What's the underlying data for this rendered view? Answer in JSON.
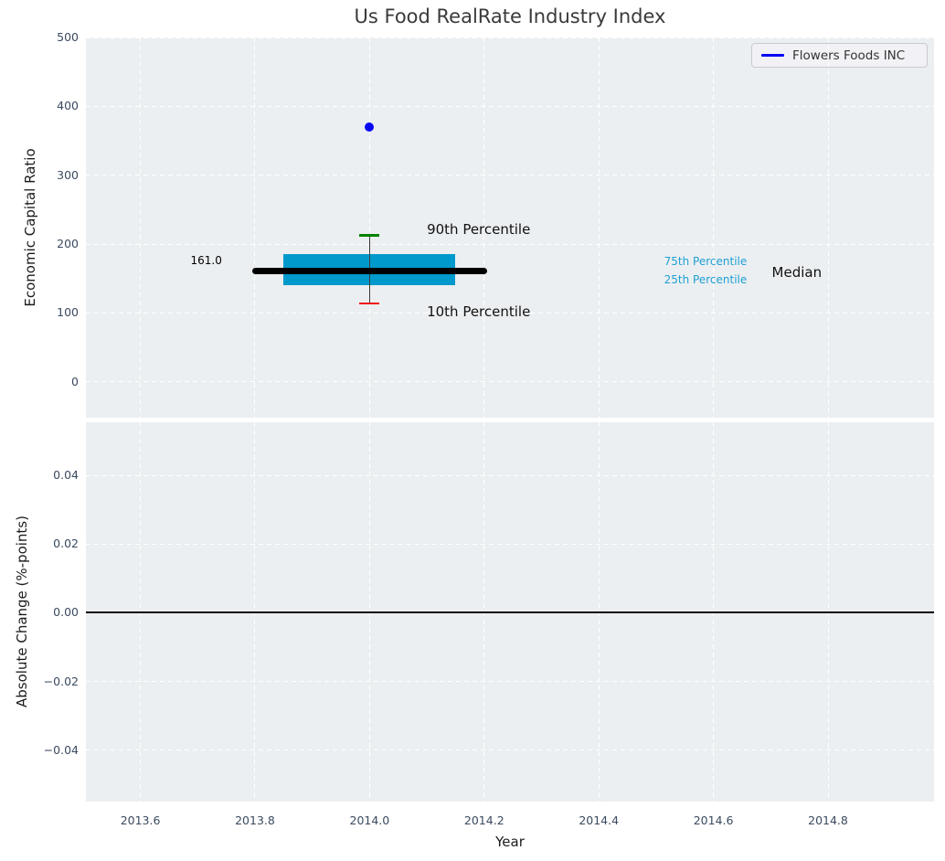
{
  "title": "Us Food RealRate Industry Index",
  "legend": {
    "label": "Flowers Foods INC",
    "position": "upper right"
  },
  "colors": {
    "panel_bg": "#eceff1",
    "grid": "#ffffff",
    "tick_text": "#3b4a5f",
    "title_text": "#3a3a3a",
    "axis_label_text": "#1c1c1c",
    "box_fill": "#0099cc",
    "median": "#000000",
    "whisker": "#3a3a3a",
    "p90_cap": "#008000",
    "p10_cap": "#ee1111",
    "company": "#0707f5",
    "percentile_text": "#1ea0d4",
    "annotation_text": "#111111",
    "zero_line": "#000000",
    "legend_bg": "#f2f2f6",
    "legend_border": "#c9c9d2"
  },
  "chart_data": [
    {
      "type": "boxplot",
      "panel": "top",
      "title": "Us Food RealRate Industry Index",
      "ylabel": "Economic Capital Ratio",
      "ylim": [
        -52,
        500
      ],
      "yticks": [
        {
          "value": 0,
          "label": "0"
        },
        {
          "value": 100,
          "label": "100"
        },
        {
          "value": 200,
          "label": "200"
        },
        {
          "value": 300,
          "label": "300"
        },
        {
          "value": 400,
          "label": "400"
        },
        {
          "value": 500,
          "label": "500"
        }
      ],
      "xlim": [
        2013.505,
        2014.985
      ],
      "xticks": [
        {
          "value": 2013.6,
          "label": "2013.6"
        },
        {
          "value": 2013.8,
          "label": "2013.8"
        },
        {
          "value": 2014.0,
          "label": "2014.0"
        },
        {
          "value": 2014.2,
          "label": "2014.2"
        },
        {
          "value": 2014.4,
          "label": "2014.4"
        },
        {
          "value": 2014.6,
          "label": "2014.6"
        },
        {
          "value": 2014.8,
          "label": "2014.8"
        }
      ],
      "grid": "dashed-white",
      "box": {
        "x_center": 2014.0,
        "box_x_start": 2013.85,
        "box_x_end": 2014.15,
        "median_x_start": 2013.8,
        "median_x_end": 2014.2,
        "p90": 213,
        "p75": 186,
        "median": 161.0,
        "p25": 141,
        "p10": 114
      },
      "company_point": {
        "name": "Flowers Foods INC",
        "x": 2014.0,
        "y": 370
      },
      "annotations": [
        {
          "text": "161.0",
          "x": 2013.715,
          "y": 176,
          "size": 12,
          "color": "#000000",
          "align": "center"
        },
        {
          "text": "90th Percentile",
          "x": 2014.1,
          "y": 221,
          "size": 15,
          "color": "#111111",
          "align": "left"
        },
        {
          "text": "10th Percentile",
          "x": 2014.1,
          "y": 102,
          "size": 15,
          "color": "#111111",
          "align": "left"
        },
        {
          "text": "75th Percentile",
          "x": 2014.514,
          "y": 175,
          "size": 12,
          "color": "#1ea0d4",
          "align": "left"
        },
        {
          "text": "25th Percentile",
          "x": 2014.514,
          "y": 148,
          "size": 12,
          "color": "#1ea0d4",
          "align": "left"
        },
        {
          "text": "Median",
          "x": 2014.702,
          "y": 159,
          "size": 15,
          "color": "#111111",
          "align": "left"
        }
      ]
    },
    {
      "type": "line",
      "panel": "bottom",
      "ylabel": "Absolute Change (%-points)",
      "xlabel": "Year",
      "ylim": [
        -0.055,
        0.0555
      ],
      "yticks": [
        {
          "value": 0.04,
          "label": "0.04"
        },
        {
          "value": 0.02,
          "label": "0.02"
        },
        {
          "value": 0.0,
          "label": "0.00"
        },
        {
          "value": -0.02,
          "label": "−0.02"
        },
        {
          "value": -0.04,
          "label": "−0.04"
        }
      ],
      "xlim": [
        2013.505,
        2014.985
      ],
      "xticks": [
        {
          "value": 2013.6,
          "label": "2013.6"
        },
        {
          "value": 2013.8,
          "label": "2013.8"
        },
        {
          "value": 2014.0,
          "label": "2014.0"
        },
        {
          "value": 2014.2,
          "label": "2014.2"
        },
        {
          "value": 2014.4,
          "label": "2014.4"
        },
        {
          "value": 2014.6,
          "label": "2014.6"
        },
        {
          "value": 2014.8,
          "label": "2014.8"
        }
      ],
      "grid": "dashed-white",
      "zero_line": 0.0,
      "series": []
    }
  ]
}
